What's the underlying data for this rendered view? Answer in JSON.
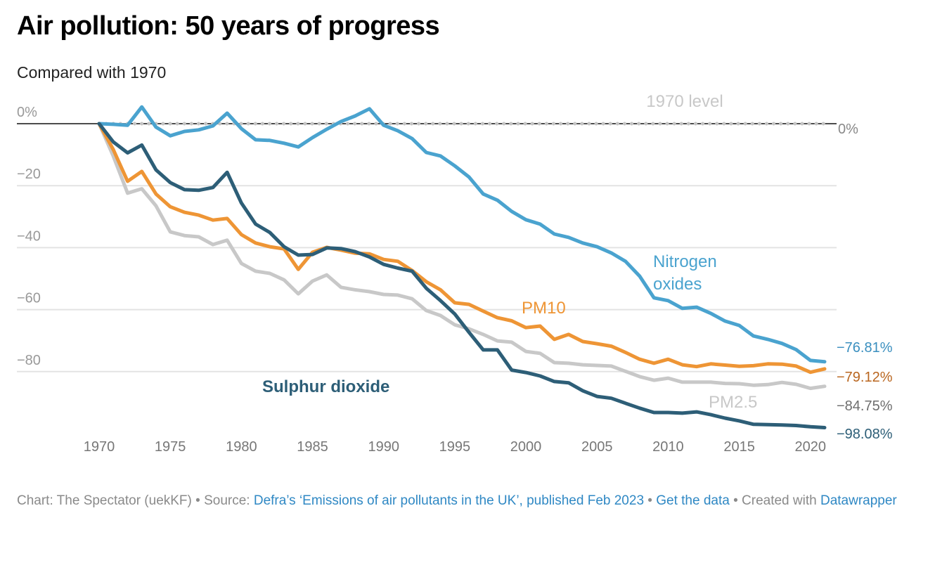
{
  "title": "Air pollution: 50 years of progress",
  "subtitle": "Compared with 1970",
  "footer": {
    "prefix": "Chart: The Spectator (uekKF) • Source: ",
    "source_link": "Defra’s ‘Emissions of air pollutants in the UK’, published Feb 2023",
    "sep1": " • ",
    "data_link": "Get the data",
    "sep2": " • Created with ",
    "tool_link": "Datawrapper"
  },
  "chart_data": {
    "type": "line",
    "title": "Air pollution: 50 years of progress",
    "subtitle": "Compared with 1970",
    "xlabel": "",
    "ylabel": "",
    "ylim": [
      -100,
      0
    ],
    "xlim": [
      1970,
      2021
    ],
    "grid": true,
    "y_ticks": [
      0,
      -20,
      -40,
      -60,
      -80
    ],
    "y_tick_labels": [
      "0%",
      "−20",
      "−40",
      "−60",
      "−80"
    ],
    "x_ticks": [
      1970,
      1975,
      1980,
      1985,
      1990,
      1995,
      2000,
      2005,
      2010,
      2015,
      2020
    ],
    "x_tick_labels": [
      "1970",
      "1975",
      "1980",
      "1985",
      "1990",
      "1995",
      "2000",
      "2005",
      "2010",
      "2015",
      "2020"
    ],
    "reference_line": {
      "value": 0,
      "label": "1970 level",
      "right_label": "0%"
    },
    "x": [
      1970,
      1971,
      1972,
      1973,
      1974,
      1975,
      1976,
      1977,
      1978,
      1979,
      1980,
      1981,
      1982,
      1983,
      1984,
      1985,
      1986,
      1987,
      1988,
      1989,
      1990,
      1991,
      1992,
      1993,
      1994,
      1995,
      1996,
      1997,
      1998,
      1999,
      2000,
      2001,
      2002,
      2003,
      2004,
      2005,
      2006,
      2007,
      2008,
      2009,
      2010,
      2011,
      2012,
      2013,
      2014,
      2015,
      2016,
      2017,
      2018,
      2019,
      2020,
      2021
    ],
    "series": [
      {
        "name": "Nitrogen oxides",
        "label": "Nitrogen oxides",
        "label_lines": [
          "Nitrogen",
          "oxides"
        ],
        "end_label": "−76.81%",
        "color": "#4aa3cf",
        "end_label_color": "#3a8fbf",
        "values": [
          0,
          -0.2,
          -0.5,
          5.4,
          -1.1,
          -3.9,
          -2.5,
          -2.0,
          -0.7,
          3.4,
          -1.6,
          -5.2,
          -5.4,
          -6.3,
          -7.5,
          -4.5,
          -1.8,
          0.7,
          2.5,
          4.8,
          -0.5,
          -2.3,
          -4.8,
          -9.3,
          -10.4,
          -13.6,
          -17.2,
          -22.7,
          -24.7,
          -28.3,
          -31.0,
          -32.4,
          -35.6,
          -36.7,
          -38.5,
          -39.7,
          -41.7,
          -44.4,
          -49.2,
          -56.2,
          -57.1,
          -59.6,
          -59.2,
          -61.2,
          -63.7,
          -65.1,
          -68.5,
          -69.6,
          -70.9,
          -72.9,
          -76.4,
          -76.81
        ]
      },
      {
        "name": "PM10",
        "label": "PM10",
        "end_label": "−79.12%",
        "color": "#ee9535",
        "end_label_color": "#b9661f",
        "values": [
          0,
          -8.4,
          -18.6,
          -15.4,
          -22.7,
          -26.8,
          -28.6,
          -29.5,
          -31.1,
          -30.6,
          -35.8,
          -38.5,
          -39.7,
          -40.4,
          -47.0,
          -41.5,
          -39.9,
          -40.8,
          -41.8,
          -42.0,
          -43.8,
          -44.4,
          -47.4,
          -51.0,
          -53.6,
          -57.8,
          -58.3,
          -60.5,
          -62.6,
          -63.6,
          -65.8,
          -65.3,
          -69.6,
          -68.0,
          -70.3,
          -71.0,
          -71.8,
          -73.8,
          -76.0,
          -77.3,
          -76.0,
          -77.8,
          -78.4,
          -77.5,
          -77.9,
          -78.3,
          -78.1,
          -77.5,
          -77.6,
          -78.2,
          -80.2,
          -79.12
        ]
      },
      {
        "name": "PM2.5",
        "label": "PM2.5",
        "end_label": "−84.75%",
        "color": "#c8c8c8",
        "end_label_color": "#6e6e6e",
        "values": [
          0,
          -10.5,
          -22.4,
          -21.0,
          -26.5,
          -34.9,
          -36.1,
          -36.5,
          -39.0,
          -37.6,
          -45.1,
          -47.6,
          -48.3,
          -50.4,
          -54.9,
          -50.8,
          -48.8,
          -52.8,
          -53.6,
          -54.2,
          -55.1,
          -55.3,
          -56.5,
          -60.3,
          -61.9,
          -64.9,
          -66.2,
          -68.0,
          -70.1,
          -70.5,
          -73.5,
          -74.1,
          -77.1,
          -77.3,
          -77.8,
          -78.0,
          -78.2,
          -79.9,
          -81.6,
          -82.8,
          -82.1,
          -83.4,
          -83.4,
          -83.4,
          -83.8,
          -83.9,
          -84.4,
          -84.2,
          -83.5,
          -84.1,
          -85.4,
          -84.75
        ]
      },
      {
        "name": "Sulphur dioxide",
        "label": "Sulphur dioxide",
        "end_label": "−98.08%",
        "color": "#2d5e77",
        "end_label_color": "#2d5e77",
        "values": [
          0,
          -5.9,
          -9.4,
          -6.9,
          -14.9,
          -19.0,
          -21.3,
          -21.5,
          -20.6,
          -15.7,
          -25.6,
          -32.4,
          -35.1,
          -39.7,
          -42.4,
          -42.2,
          -40.1,
          -40.3,
          -41.3,
          -43.0,
          -45.4,
          -46.6,
          -47.6,
          -53.1,
          -57.1,
          -61.4,
          -67.3,
          -73.0,
          -73.0,
          -79.5,
          -80.3,
          -81.4,
          -83.2,
          -83.6,
          -86.2,
          -88.0,
          -88.6,
          -90.2,
          -91.8,
          -93.2,
          -93.2,
          -93.4,
          -93.0,
          -93.9,
          -95.0,
          -95.9,
          -97.0,
          -97.1,
          -97.2,
          -97.4,
          -97.8,
          -98.08
        ]
      }
    ]
  }
}
